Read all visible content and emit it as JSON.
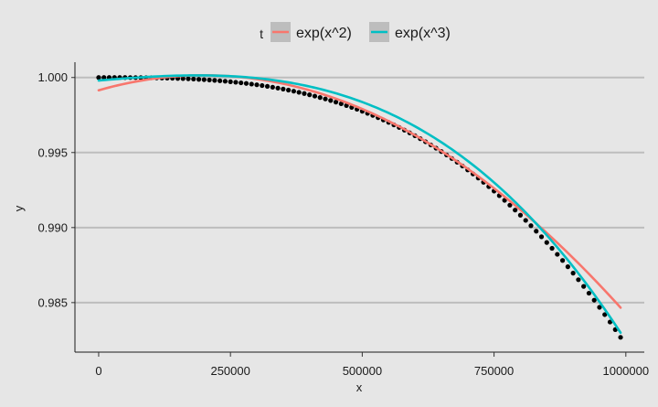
{
  "chart_data": {
    "type": "scatter",
    "xlabel": "x",
    "ylabel": "y",
    "xlim": [
      -45000,
      1035000
    ],
    "ylim": [
      0.9817,
      1.00102
    ],
    "x_ticks": [
      0,
      250000,
      500000,
      750000,
      1000000
    ],
    "x_tick_labels": [
      "0",
      "250000",
      "500000",
      "750000",
      "1000000"
    ],
    "y_ticks": [
      0.985,
      0.99,
      0.995,
      1.0
    ],
    "y_tick_labels": [
      "0.985",
      "0.990",
      "0.995",
      "1.000"
    ],
    "grid": "horizontal",
    "legend": {
      "title": "t",
      "placement": "top",
      "entries": [
        "exp(x^2)",
        "exp(x^3)"
      ]
    },
    "points": {
      "color": "#000000",
      "x_start": 0,
      "x_end": 990000,
      "x_step": 10000,
      "relation": "y = exp(-1.8e-20 * x^3)"
    },
    "series": [
      {
        "name": "exp(x^2)",
        "color": "#F8766D",
        "x_range": [
          0,
          990000
        ],
        "relation": "y = exp(a + b*x + c*x^2)",
        "coefficients": {
          "a": -0.000852,
          "b": 1e-08,
          "c": -2.5e-14
        }
      },
      {
        "name": "exp(x^3)",
        "color": "#00BFC4",
        "x_range": [
          0,
          990000
        ],
        "relation": "y = exp(a + b*x + c*x^2 + d*x^3)",
        "coefficients": {
          "a": -0.0002,
          "b": 3e-09,
          "c": -3e-15,
          "d": -1.75e-20
        }
      }
    ]
  }
}
